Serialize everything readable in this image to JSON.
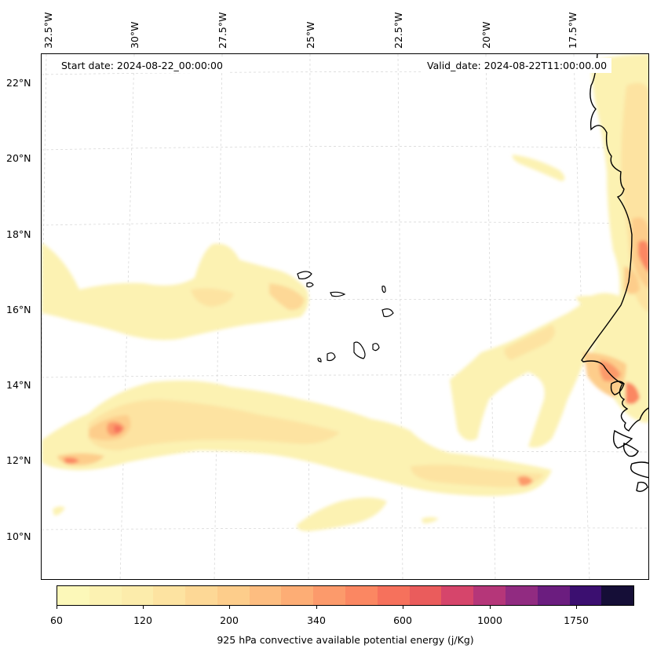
{
  "map": {
    "start_date": "Start date: 2024-08-22_00:00:00",
    "valid_date": "Valid_date: 2024-08-22T11:00:00.00",
    "lon_labels": [
      "32.5°W",
      "30°W",
      "27.5°W",
      "25°W",
      "22.5°W",
      "20°W",
      "17.5°W"
    ],
    "lat_labels": [
      "22°N",
      "20°N",
      "18°N",
      "16°N",
      "14°N",
      "12°N",
      "10°N"
    ],
    "colors": {
      "ocean": "#ffffff",
      "coastline": "#000000",
      "gridline": "#cccccc"
    }
  },
  "colorbar": {
    "label": "925 hPa convective available potential energy (j/Kg)",
    "tick_labels": [
      "60",
      "120",
      "200",
      "340",
      "600",
      "1000",
      "1750"
    ],
    "colors": [
      "#fcf8b9",
      "#fcf2b2",
      "#fcecab",
      "#fde3a1",
      "#fdd896",
      "#fdcd8b",
      "#fdbd80",
      "#fdad75",
      "#fc9a6b",
      "#fb8762",
      "#f6715c",
      "#ea5c5c",
      "#d6456b",
      "#b53679",
      "#912b81",
      "#6b1d7f",
      "#3b0f70",
      "#150e37"
    ]
  }
}
